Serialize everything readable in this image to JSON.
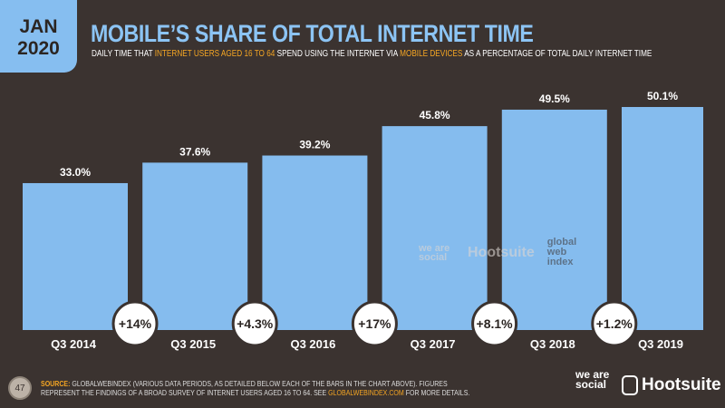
{
  "header": {
    "date_line1": "JAN",
    "date_line2": "2020",
    "title": "MOBILE’S SHARE OF TOTAL INTERNET TIME",
    "subtitle_parts": [
      "DAILY TIME THAT ",
      "INTERNET USERS AGED 16 TO 64",
      " SPEND USING THE INTERNET VIA ",
      "MOBILE DEVICES",
      " AS A PERCENTAGE OF TOTAL DAILY INTERNET TIME"
    ]
  },
  "chart_data": {
    "type": "bar",
    "categories": [
      "Q3 2014",
      "Q3 2015",
      "Q3 2016",
      "Q3 2017",
      "Q3 2018",
      "Q3 2019"
    ],
    "values": [
      33.0,
      37.6,
      39.2,
      45.8,
      49.5,
      50.1
    ],
    "value_labels": [
      "33.0%",
      "37.6%",
      "39.2%",
      "45.8%",
      "49.5%",
      "50.1%"
    ],
    "changes": [
      "+14%",
      "+4.3%",
      "+17%",
      "+8.1%",
      "+1.2%"
    ],
    "ylim": [
      0,
      55
    ],
    "grid": false,
    "bar_color": "#85bcee"
  },
  "footer": {
    "page": "47",
    "source_label": "SOURCE:",
    "source_text": " GLOBALWEBINDEX (VARIOUS DATA PERIODS, AS DETAILED BELOW EACH OF THE BARS IN THE CHART ABOVE). FIGURES REPRESENT THE FINDINGS OF A BROAD SURVEY OF INTERNET USERS AGED 16 TO 64. SEE ",
    "source_link": "GLOBALWEBINDEX.COM",
    "source_end": " FOR MORE DETAILS.",
    "logo_wearesocial": "we are social",
    "logo_hootsuite": "Hootsuite",
    "watermark_gwi": "global web index"
  },
  "colors": {
    "background": "#3b3330",
    "accent": "#f5a623",
    "title": "#8cc4f4"
  }
}
